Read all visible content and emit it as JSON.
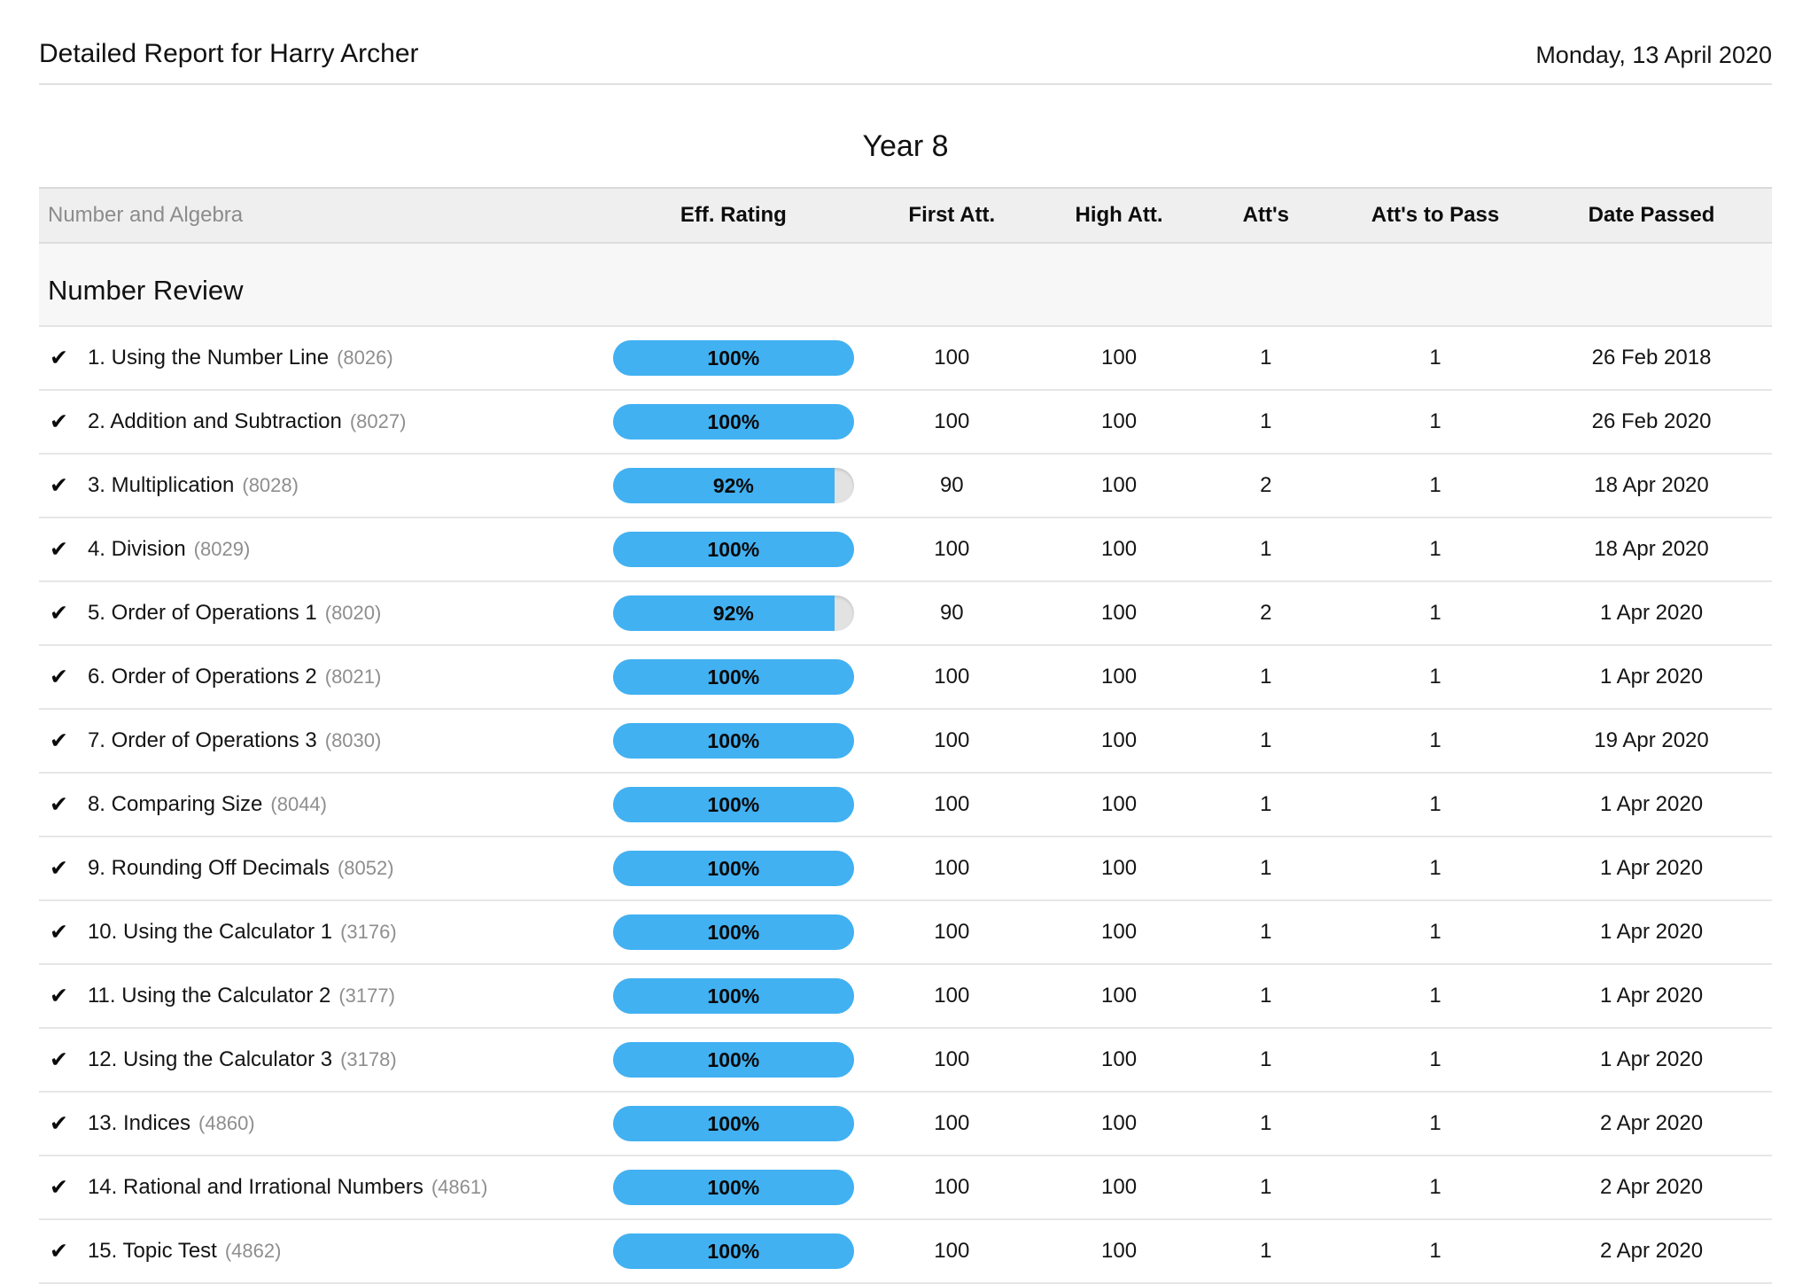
{
  "header": {
    "title": "Detailed Report for Harry Archer",
    "date": "Monday, 13 April 2020",
    "year": "Year 8"
  },
  "icons": {
    "check": "✔"
  },
  "colors": {
    "pill_fill": "#41b1f2",
    "pill_track": "#e2e2e2"
  },
  "table": {
    "columns": [
      {
        "key": "topic",
        "label": "Number and Algebra"
      },
      {
        "key": "eff_rating",
        "label": "Eff. Rating"
      },
      {
        "key": "first_att",
        "label": "First Att."
      },
      {
        "key": "high_att",
        "label": "High Att."
      },
      {
        "key": "atts",
        "label": "Att's"
      },
      {
        "key": "atts_to_pass",
        "label": "Att's to Pass"
      },
      {
        "key": "date_passed",
        "label": "Date Passed"
      }
    ],
    "section": "Number Review",
    "rows": [
      {
        "label": "1. Using the Number Line",
        "code": "(8026)",
        "eff": 100,
        "eff_label": "100%",
        "first": "100",
        "high": "100",
        "atts": "1",
        "atts_to_pass": "1",
        "date_passed": "26 Feb 2018"
      },
      {
        "label": "2. Addition and Subtraction",
        "code": "(8027)",
        "eff": 100,
        "eff_label": "100%",
        "first": "100",
        "high": "100",
        "atts": "1",
        "atts_to_pass": "1",
        "date_passed": "26 Feb 2020"
      },
      {
        "label": "3. Multiplication",
        "code": "(8028)",
        "eff": 92,
        "eff_label": "92%",
        "first": "90",
        "high": "100",
        "atts": "2",
        "atts_to_pass": "1",
        "date_passed": "18 Apr 2020"
      },
      {
        "label": "4. Division",
        "code": "(8029)",
        "eff": 100,
        "eff_label": "100%",
        "first": "100",
        "high": "100",
        "atts": "1",
        "atts_to_pass": "1",
        "date_passed": "18 Apr 2020"
      },
      {
        "label": "5. Order of Operations 1",
        "code": "(8020)",
        "eff": 92,
        "eff_label": "92%",
        "first": "90",
        "high": "100",
        "atts": "2",
        "atts_to_pass": "1",
        "date_passed": "1 Apr 2020"
      },
      {
        "label": "6. Order of Operations 2",
        "code": "(8021)",
        "eff": 100,
        "eff_label": "100%",
        "first": "100",
        "high": "100",
        "atts": "1",
        "atts_to_pass": "1",
        "date_passed": "1 Apr 2020"
      },
      {
        "label": "7. Order of Operations 3",
        "code": "(8030)",
        "eff": 100,
        "eff_label": "100%",
        "first": "100",
        "high": "100",
        "atts": "1",
        "atts_to_pass": "1",
        "date_passed": "19 Apr 2020"
      },
      {
        "label": "8. Comparing Size",
        "code": "(8044)",
        "eff": 100,
        "eff_label": "100%",
        "first": "100",
        "high": "100",
        "atts": "1",
        "atts_to_pass": "1",
        "date_passed": "1 Apr 2020"
      },
      {
        "label": "9. Rounding Off Decimals",
        "code": "(8052)",
        "eff": 100,
        "eff_label": "100%",
        "first": "100",
        "high": "100",
        "atts": "1",
        "atts_to_pass": "1",
        "date_passed": "1 Apr 2020"
      },
      {
        "label": "10. Using the Calculator 1",
        "code": "(3176)",
        "eff": 100,
        "eff_label": "100%",
        "first": "100",
        "high": "100",
        "atts": "1",
        "atts_to_pass": "1",
        "date_passed": "1 Apr 2020"
      },
      {
        "label": "11. Using the Calculator 2",
        "code": "(3177)",
        "eff": 100,
        "eff_label": "100%",
        "first": "100",
        "high": "100",
        "atts": "1",
        "atts_to_pass": "1",
        "date_passed": "1 Apr 2020"
      },
      {
        "label": "12. Using the Calculator 3",
        "code": "(3178)",
        "eff": 100,
        "eff_label": "100%",
        "first": "100",
        "high": "100",
        "atts": "1",
        "atts_to_pass": "1",
        "date_passed": "1 Apr 2020"
      },
      {
        "label": "13. Indices",
        "code": "(4860)",
        "eff": 100,
        "eff_label": "100%",
        "first": "100",
        "high": "100",
        "atts": "1",
        "atts_to_pass": "1",
        "date_passed": "2 Apr 2020"
      },
      {
        "label": "14. Rational and Irrational Numbers",
        "code": "(4861)",
        "eff": 100,
        "eff_label": "100%",
        "first": "100",
        "high": "100",
        "atts": "1",
        "atts_to_pass": "1",
        "date_passed": "2 Apr 2020"
      },
      {
        "label": "15. Topic Test",
        "code": "(4862)",
        "eff": 100,
        "eff_label": "100%",
        "first": "100",
        "high": "100",
        "atts": "1",
        "atts_to_pass": "1",
        "date_passed": "2 Apr 2020"
      }
    ]
  }
}
